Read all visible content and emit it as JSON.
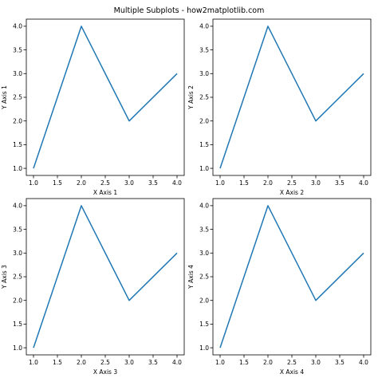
{
  "figure": {
    "title": "Multiple Subplots - how2matplotlib.com",
    "line_color": "#1f77b4"
  },
  "chart_data": [
    {
      "type": "line",
      "title": "",
      "xlabel": "X Axis 1",
      "ylabel": "Y Axis 1",
      "x": [
        1.0,
        2.0,
        3.0,
        4.0
      ],
      "series": [
        {
          "values": [
            1.0,
            4.0,
            2.0,
            3.0
          ]
        }
      ],
      "xlim": [
        0.85,
        4.15
      ],
      "ylim": [
        0.85,
        4.15
      ],
      "xticks": [
        "1.0",
        "1.5",
        "2.0",
        "2.5",
        "3.0",
        "3.5",
        "4.0"
      ],
      "yticks": [
        "1.0",
        "1.5",
        "2.0",
        "2.5",
        "3.0",
        "3.5",
        "4.0"
      ],
      "grid": false
    },
    {
      "type": "line",
      "title": "",
      "xlabel": "X Axis 2",
      "ylabel": "Y Axis 2",
      "x": [
        1.0,
        2.0,
        3.0,
        4.0
      ],
      "series": [
        {
          "values": [
            1.0,
            4.0,
            2.0,
            3.0
          ]
        }
      ],
      "xlim": [
        0.85,
        4.15
      ],
      "ylim": [
        0.85,
        4.15
      ],
      "xticks": [
        "1.0",
        "1.5",
        "2.0",
        "2.5",
        "3.0",
        "3.5",
        "4.0"
      ],
      "yticks": [
        "1.0",
        "1.5",
        "2.0",
        "2.5",
        "3.0",
        "3.5",
        "4.0"
      ],
      "grid": false
    },
    {
      "type": "line",
      "title": "",
      "xlabel": "X Axis 3",
      "ylabel": "Y Axis 3",
      "x": [
        1.0,
        2.0,
        3.0,
        4.0
      ],
      "series": [
        {
          "values": [
            1.0,
            4.0,
            2.0,
            3.0
          ]
        }
      ],
      "xlim": [
        0.85,
        4.15
      ],
      "ylim": [
        0.85,
        4.15
      ],
      "xticks": [
        "1.0",
        "1.5",
        "2.0",
        "2.5",
        "3.0",
        "3.5",
        "4.0"
      ],
      "yticks": [
        "1.0",
        "1.5",
        "2.0",
        "2.5",
        "3.0",
        "3.5",
        "4.0"
      ],
      "grid": false
    },
    {
      "type": "line",
      "title": "",
      "xlabel": "X Axis 4",
      "ylabel": "Y Axis 4",
      "x": [
        1.0,
        2.0,
        3.0,
        4.0
      ],
      "series": [
        {
          "values": [
            1.0,
            4.0,
            2.0,
            3.0
          ]
        }
      ],
      "xlim": [
        0.85,
        4.15
      ],
      "ylim": [
        0.85,
        4.15
      ],
      "xticks": [
        "1.0",
        "1.5",
        "2.0",
        "2.5",
        "3.0",
        "3.5",
        "4.0"
      ],
      "yticks": [
        "1.0",
        "1.5",
        "2.0",
        "2.5",
        "3.0",
        "3.5",
        "4.0"
      ],
      "grid": false
    }
  ]
}
